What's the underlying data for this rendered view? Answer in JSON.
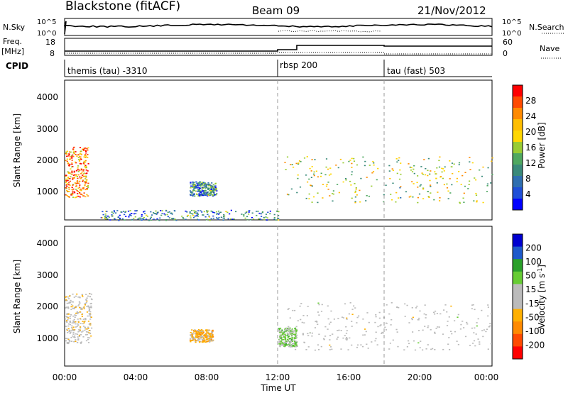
{
  "header": {
    "title": "Blackstone (fitACF)",
    "beam": "Beam 09",
    "date": "21/Nov/2012"
  },
  "top_panels": {
    "nsky_label": "N.Sky",
    "nsky_ticks": [
      "10^5",
      "10^0"
    ],
    "nsearch_label": "N.Search",
    "nsearch_ticks": [
      "10^5",
      "10^0"
    ],
    "freq_label": "Freq.",
    "freq_unit": "[MHz]",
    "freq_ticks": [
      "18",
      "8"
    ],
    "nave_label": "Nave",
    "nave_ticks": [
      "60",
      "0"
    ],
    "cpid_label": "CPID",
    "cpid_segments": [
      {
        "label": "themis (tau) -3310",
        "start_hour": 0
      },
      {
        "label": "rbsp 200",
        "start_hour": 12
      },
      {
        "label": "tau (fast) 503",
        "start_hour": 18
      }
    ]
  },
  "chart_data": [
    {
      "type": "heatmap",
      "panel": "power",
      "ylabel": "Slant Range [km]",
      "ylim": [
        180,
        4600
      ],
      "yticks": [
        "1000",
        "2000",
        "3000",
        "4000"
      ],
      "xlim_hours": [
        0,
        24
      ],
      "colorbar_label": "Power [dB]",
      "colorbar_ticks": [
        "28",
        "24",
        "20",
        "16",
        "12",
        "8",
        "4"
      ],
      "colorbar_colors": [
        "#ff0000",
        "#ff4a00",
        "#ff8a00",
        "#ffbe00",
        "#ffd700",
        "#99cc33",
        "#4fa860",
        "#3a8a7a",
        "#2f6fb0",
        "#1f4fd8",
        "#0000ff"
      ],
      "colorbar_range": [
        0,
        30
      ],
      "echo_regions": [
        {
          "t": [
            0.0,
            1.3
          ],
          "r": [
            900,
            2500
          ],
          "power": 24
        },
        {
          "t": [
            12.3,
            24.0
          ],
          "r": [
            700,
            2200
          ],
          "power": 16
        },
        {
          "t": [
            7.0,
            8.5
          ],
          "r": [
            950,
            1400
          ],
          "power": 8
        },
        {
          "t": [
            2.0,
            12.0
          ],
          "r": [
            180,
            500
          ],
          "power": 8
        }
      ]
    },
    {
      "type": "heatmap",
      "panel": "velocity",
      "ylabel": "Slant Range [km]",
      "ylim": [
        180,
        4600
      ],
      "yticks": [
        "1000",
        "2000",
        "3000",
        "4000"
      ],
      "xlim_hours": [
        0,
        24
      ],
      "xticks": [
        "00:00",
        "04:00",
        "08:00",
        "12:00",
        "16:00",
        "20:00",
        "00:00"
      ],
      "xlabel": "Time UT",
      "colorbar_label": "Velocity [m s",
      "colorbar_label_sup": "-1",
      "colorbar_label_close": "]",
      "colorbar_ticks": [
        "200",
        "100",
        "50",
        "15",
        "-15",
        "-50",
        "-100",
        "-200"
      ],
      "colorbar_colors": [
        "#0000d0",
        "#1e5acc",
        "#2aa02a",
        "#66cc33",
        "#bbbbbb",
        "#bbbbbb",
        "#ffb000",
        "#ff8a00",
        "#ff4a00",
        "#ff0000"
      ],
      "colorbar_range": [
        -250,
        250
      ],
      "echo_regions": [
        {
          "t": [
            0.0,
            1.5
          ],
          "r": [
            900,
            2500
          ],
          "velocity": -20
        },
        {
          "t": [
            12.5,
            24.0
          ],
          "r": [
            700,
            2200
          ],
          "velocity": 0
        },
        {
          "t": [
            7.0,
            8.3
          ],
          "r": [
            950,
            1350
          ],
          "velocity": -80
        },
        {
          "t": [
            12.0,
            13.0
          ],
          "r": [
            800,
            1400
          ],
          "velocity": 60
        }
      ]
    }
  ]
}
